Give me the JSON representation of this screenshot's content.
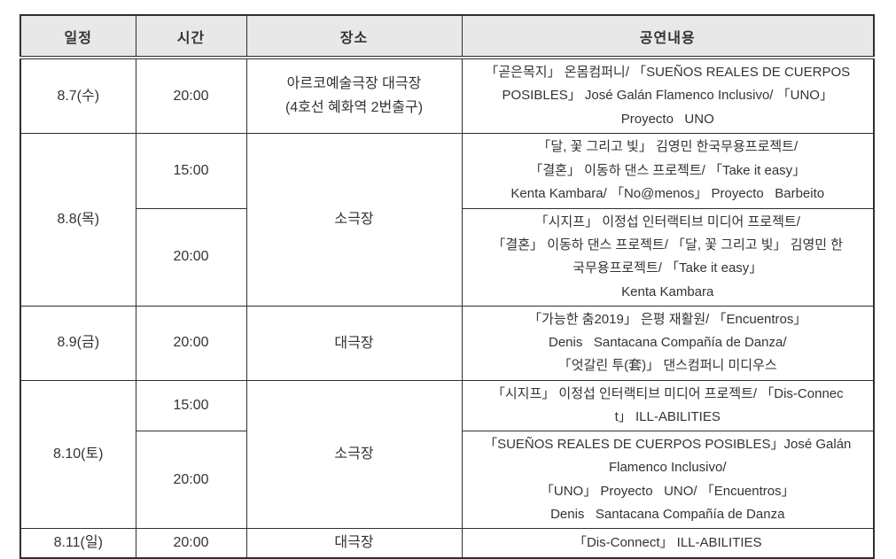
{
  "colors": {
    "border": "#2f2f2f",
    "header_bg": "#e8e8e8",
    "text": "#333333",
    "page_bg": "#ffffff"
  },
  "table": {
    "headers": {
      "schedule": "일정",
      "time": "시간",
      "venue": "장소",
      "program": "공연내용"
    },
    "days": [
      {
        "date": "8.7(수)",
        "venue": [
          "아르코예술극장 대극장",
          "(4호선 혜화역 2번출구)"
        ],
        "shows": [
          {
            "time": "20:00",
            "program": [
              "「곧은목지」 온몸컴퍼니/ 「SUEÑOS REALES DE CUERPOS",
              "POSIBLES」 José Galán Flamenco Inclusivo/ 「UNO」",
              "Proyecto   UNO"
            ]
          }
        ]
      },
      {
        "date": "8.8(목)",
        "venue": [
          "소극장"
        ],
        "shows": [
          {
            "time": "15:00",
            "program": [
              "「달, 꽃 그리고 빛」 김영민 한국무용프로젝트/",
              "「결혼」 이동하 댄스 프로젝트/ 「Take it easy」",
              "Kenta Kambara/ 「No@menos」 Proyecto   Barbeito"
            ]
          },
          {
            "time": "20:00",
            "program": [
              "「시지프」 이정섭 인터랙티브 미디어 프로젝트/",
              "「결혼」 이동하 댄스 프로젝트/ 「달, 꽃 그리고 빛」 김영민 한",
              "국무용프로젝트/ 「Take it easy」",
              "Kenta Kambara"
            ]
          }
        ]
      },
      {
        "date": "8.9(금)",
        "venue": [
          "대극장"
        ],
        "shows": [
          {
            "time": "20:00",
            "program": [
              "「가능한 춤2019」 은평 재활원/ 「Encuentros」",
              "Denis   Santacana Compañía de Danza/",
              "「엇갈린 투(套)」 댄스컴퍼니 미디우스"
            ]
          }
        ]
      },
      {
        "date": "8.10(토)",
        "venue": [
          "소극장"
        ],
        "shows": [
          {
            "time": "15:00",
            "program": [
              "「시지프」 이정섭 인터랙티브 미디어 프로젝트/ 「Dis-Connec",
              "t」 ILL-ABILITIES"
            ]
          },
          {
            "time": "20:00",
            "program": [
              "「SUEÑOS REALES DE CUERPOS POSIBLES」José Galán",
              "Flamenco Inclusivo/",
              "「UNO」 Proyecto   UNO/ 「Encuentros」",
              "Denis   Santacana Compañía de Danza"
            ]
          }
        ]
      },
      {
        "date": "8.11(일)",
        "venue": [
          "대극장"
        ],
        "shows": [
          {
            "time": "20:00",
            "program": [
              "「Dis-Connect」 ILL-ABILITIES"
            ]
          }
        ]
      }
    ]
  }
}
